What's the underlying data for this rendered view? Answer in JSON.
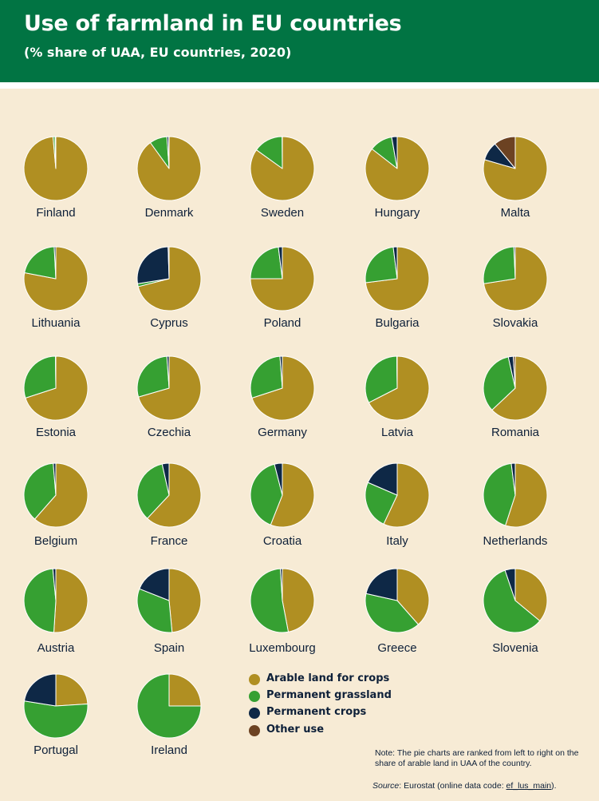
{
  "header": {
    "title": "Use of farmland in EU countries",
    "subtitle": "(% share of UAA, EU countries, 2020)"
  },
  "colors": {
    "header_bg": "#017443",
    "background": "#f7ebd5",
    "arable": "#b08f22",
    "grassland": "#36a032",
    "crops": "#0e2846",
    "other": "#6c4222"
  },
  "chart_data": {
    "type": "pie",
    "title": "Use of farmland in EU countries",
    "subtitle": "(% share of UAA, EU countries, 2020)",
    "legend_position": "bottom-center",
    "series_names": [
      "Arable land for crops",
      "Permanent grassland",
      "Permanent crops",
      "Other use"
    ],
    "countries": [
      {
        "name": "Finland",
        "values": [
          98.6,
          1.0,
          0.2,
          0.2
        ]
      },
      {
        "name": "Denmark",
        "values": [
          90.0,
          8.9,
          0.9,
          0.2
        ]
      },
      {
        "name": "Sweden",
        "values": [
          84.9,
          15.0,
          0.1,
          0.0
        ]
      },
      {
        "name": "Hungary",
        "values": [
          85.5,
          11.7,
          2.8,
          0.0
        ]
      },
      {
        "name": "Malta",
        "values": [
          79.5,
          0.0,
          9.5,
          11.0
        ]
      },
      {
        "name": "Lithuania",
        "values": [
          78.0,
          21.2,
          0.8,
          0.0
        ]
      },
      {
        "name": "Cyprus",
        "values": [
          71.0,
          1.5,
          27.0,
          0.5
        ]
      },
      {
        "name": "Poland",
        "values": [
          75.0,
          23.0,
          2.0,
          0.0
        ]
      },
      {
        "name": "Bulgaria",
        "values": [
          73.0,
          25.0,
          2.0,
          0.0
        ]
      },
      {
        "name": "Slovakia",
        "values": [
          72.5,
          26.8,
          0.7,
          0.0
        ]
      },
      {
        "name": "Estonia",
        "values": [
          70.0,
          29.8,
          0.2,
          0.0
        ]
      },
      {
        "name": "Czechia",
        "values": [
          70.5,
          28.4,
          1.1,
          0.0
        ]
      },
      {
        "name": "Germany",
        "values": [
          70.0,
          28.8,
          1.2,
          0.0
        ]
      },
      {
        "name": "Latvia",
        "values": [
          67.5,
          32.3,
          0.2,
          0.0
        ]
      },
      {
        "name": "Romania",
        "values": [
          63.0,
          33.5,
          2.5,
          1.0
        ]
      },
      {
        "name": "Belgium",
        "values": [
          61.5,
          37.2,
          1.3,
          0.0
        ]
      },
      {
        "name": "France",
        "values": [
          62.0,
          34.5,
          3.5,
          0.0
        ]
      },
      {
        "name": "Croatia",
        "values": [
          56.0,
          40.0,
          4.0,
          0.0
        ]
      },
      {
        "name": "Italy",
        "values": [
          57.0,
          24.5,
          18.5,
          0.0
        ]
      },
      {
        "name": "Netherlands",
        "values": [
          55.0,
          43.0,
          2.0,
          0.0
        ]
      },
      {
        "name": "Austria",
        "values": [
          51.0,
          47.5,
          1.5,
          0.0
        ]
      },
      {
        "name": "Spain",
        "values": [
          48.5,
          32.5,
          19.0,
          0.0
        ]
      },
      {
        "name": "Luxembourg",
        "values": [
          47.0,
          52.0,
          1.0,
          0.0
        ]
      },
      {
        "name": "Greece",
        "values": [
          38.5,
          40.0,
          21.5,
          0.0
        ]
      },
      {
        "name": "Slovenia",
        "values": [
          36.0,
          58.8,
          5.2,
          0.0
        ]
      },
      {
        "name": "Portugal",
        "values": [
          24.0,
          53.5,
          22.5,
          0.0
        ]
      },
      {
        "name": "Ireland",
        "values": [
          25.0,
          75.0,
          0.0,
          0.0
        ]
      }
    ]
  },
  "legend": {
    "items": [
      {
        "label": "Arable land for crops"
      },
      {
        "label": "Permanent grassland"
      },
      {
        "label": "Permanent crops"
      },
      {
        "label": "Other use"
      }
    ]
  },
  "note": {
    "text": "Note: The pie charts are ranked from left to right on the share of arable land in UAA of the country."
  },
  "source": {
    "label": "Source",
    "text": ": Eurostat (online data code: ",
    "code": "ef_lus_main",
    "end": ")."
  }
}
